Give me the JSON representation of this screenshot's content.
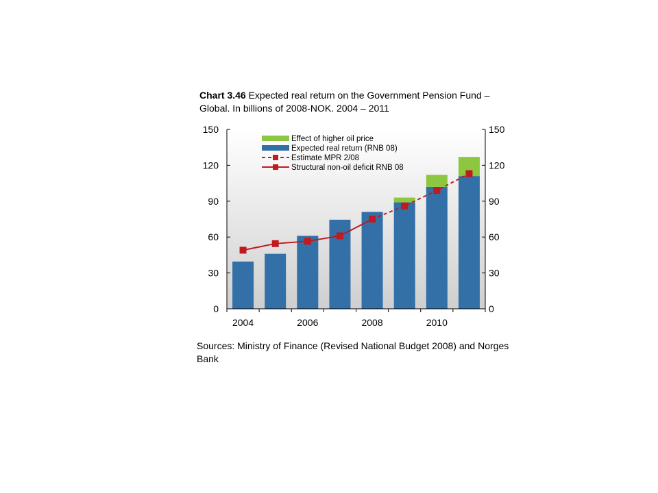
{
  "title": {
    "bold": "Chart 3.46",
    "text": "Expected real return on the Government Pension Fund – Global. In billions of 2008-NOK. 2004 – 2011"
  },
  "source": "Sources: Ministry of Finance (Revised National Budget 2008) and Norges Bank",
  "chart_data": {
    "type": "bar",
    "categories": [
      2004,
      2005,
      2006,
      2007,
      2008,
      2009,
      2010,
      2011
    ],
    "x_tick_labels": [
      "2004",
      "2006",
      "2008",
      "2010"
    ],
    "ylim": [
      0,
      150
    ],
    "y_ticks": [
      0,
      30,
      60,
      90,
      120,
      150
    ],
    "grid": false,
    "legend_position": "top-left",
    "series": [
      {
        "name": "Effect of higher oil price",
        "kind": "stacked-bar",
        "color": "#8dc63f",
        "values": [
          0,
          0,
          0,
          0,
          0,
          4,
          10,
          16
        ]
      },
      {
        "name": "Expected real return (RNB 08)",
        "kind": "bar",
        "color": "#3370a8",
        "values": [
          39.5,
          46,
          61,
          74.5,
          81,
          89,
          102,
          111
        ]
      },
      {
        "name": "Estimate MPR 2/08",
        "kind": "line-dashed",
        "color": "#c0191e",
        "x": [
          2008,
          2009,
          2010,
          2011
        ],
        "values": [
          75,
          86,
          99,
          113
        ]
      },
      {
        "name": "Structural non-oil deficit RNB 08",
        "kind": "line",
        "color": "#c0191e",
        "x": [
          2004,
          2005,
          2006,
          2007,
          2008
        ],
        "values": [
          49,
          54.5,
          56.5,
          61,
          75
        ]
      }
    ]
  }
}
